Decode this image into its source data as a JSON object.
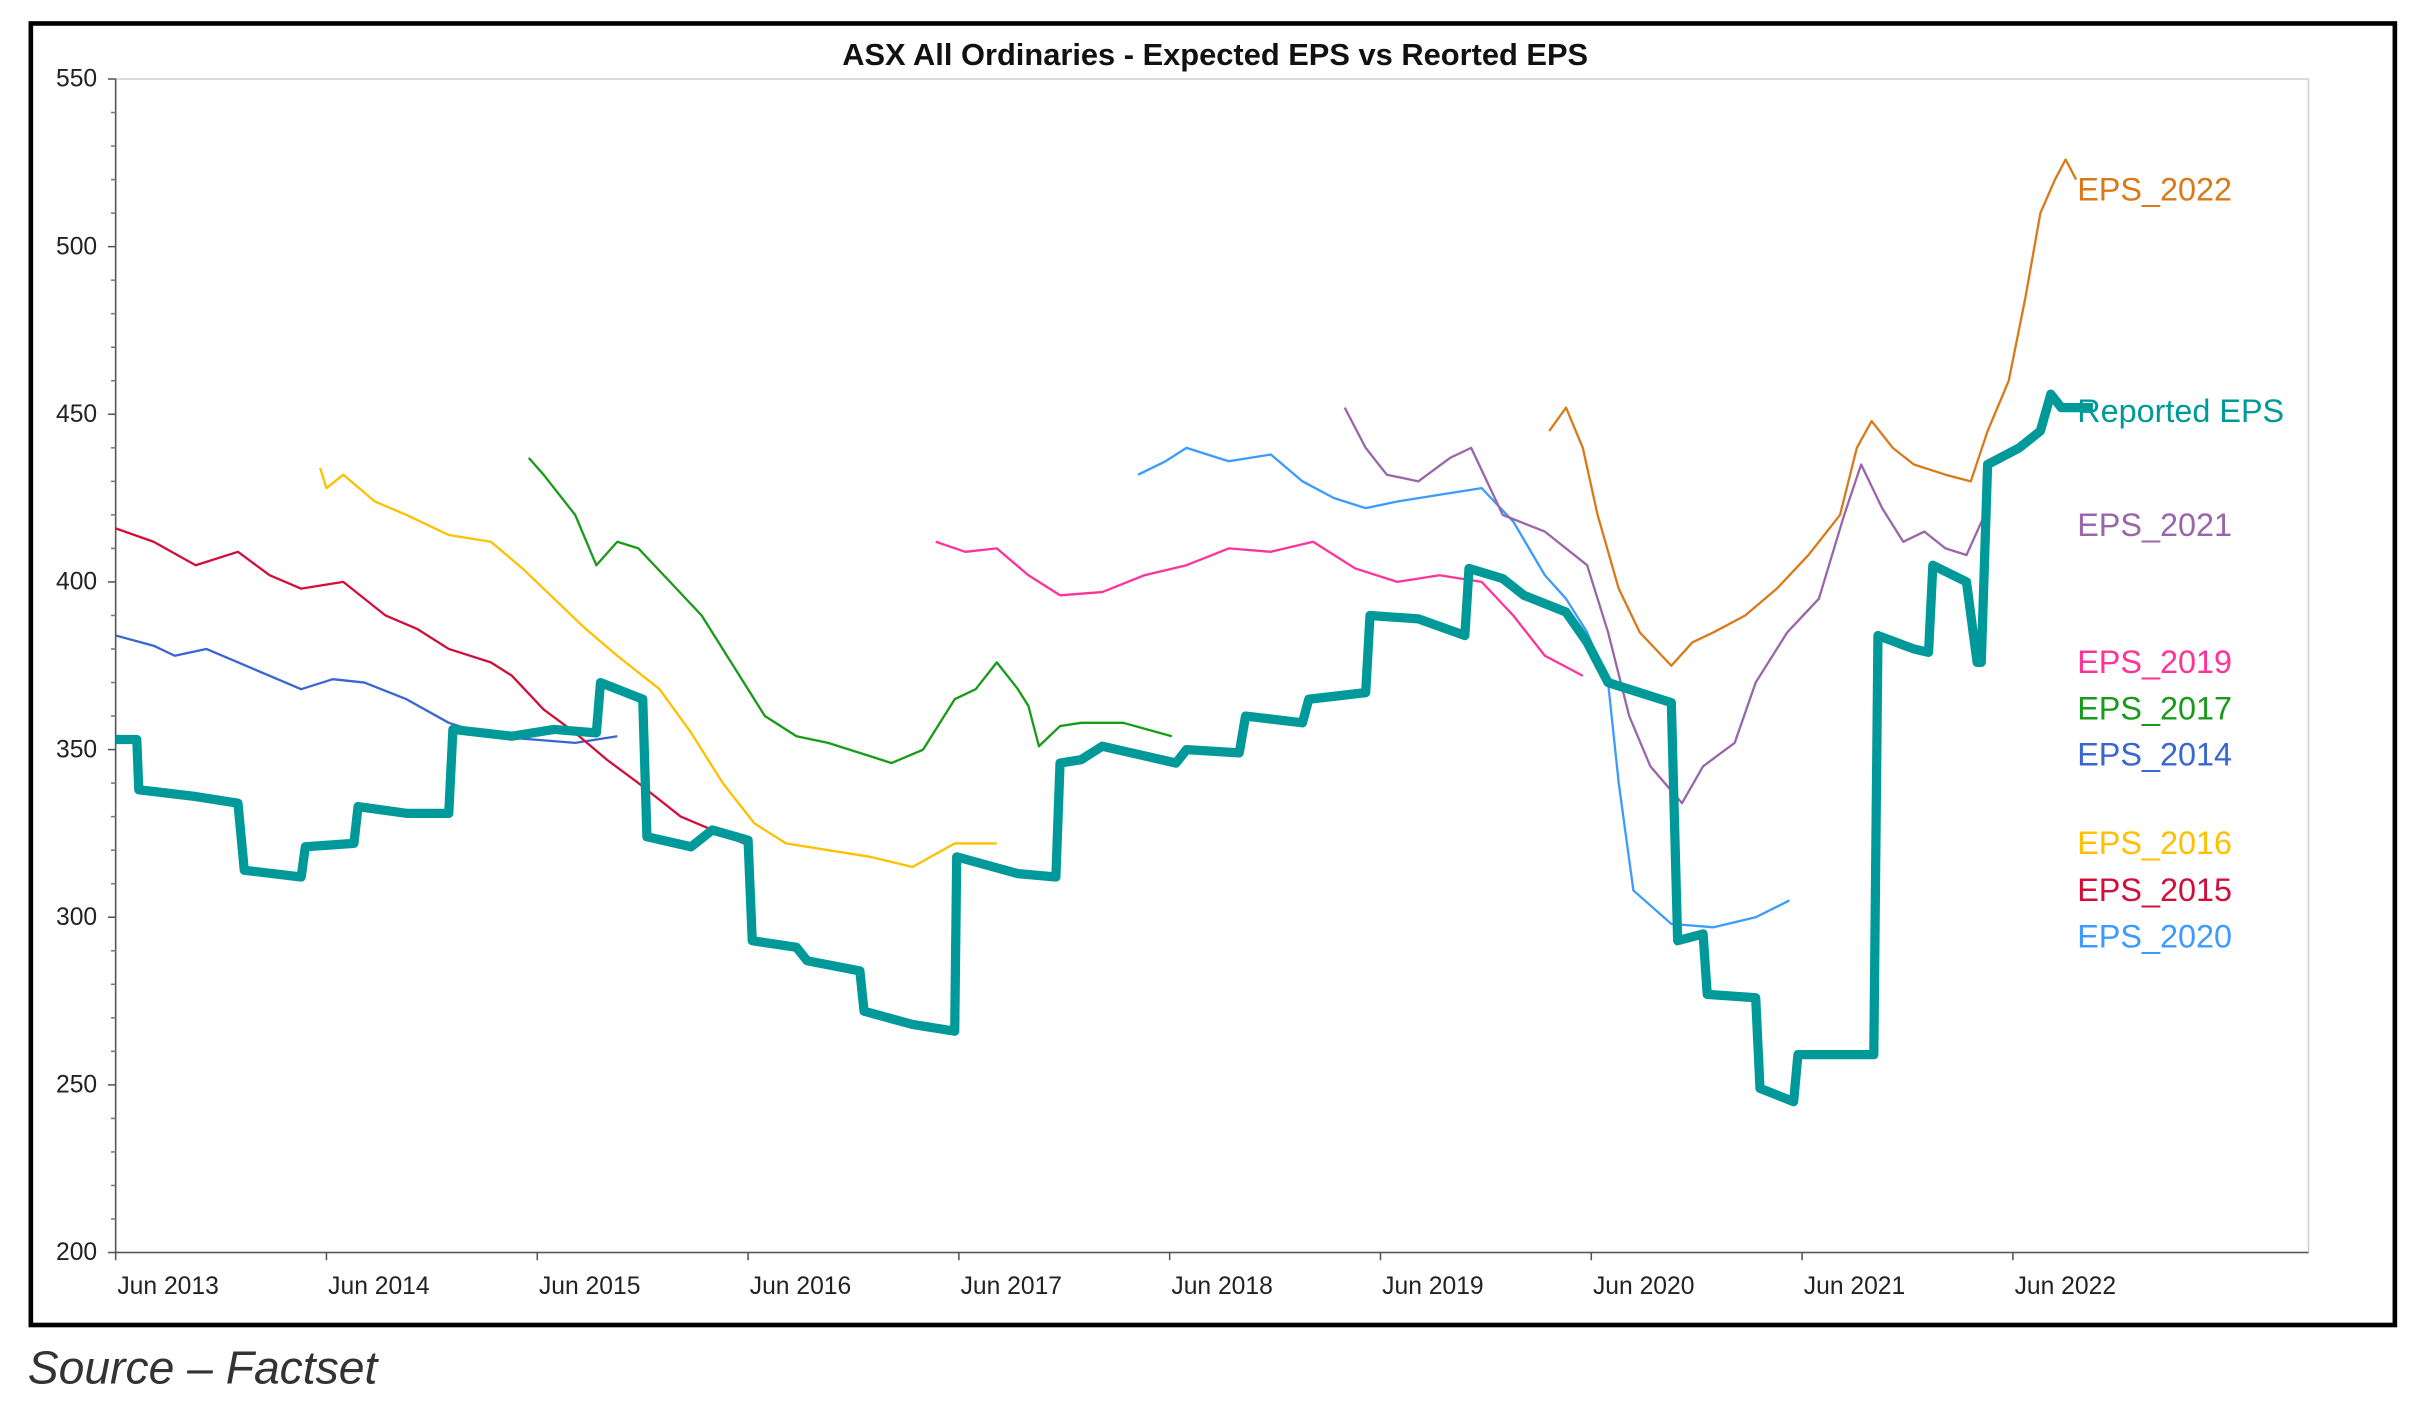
{
  "chart_data": {
    "type": "line",
    "title": "ASX All Ordinaries - Expected EPS vs Reorted EPS",
    "xlabel": "",
    "ylabel": "",
    "ylim": [
      200,
      550
    ],
    "xlim": [
      2013.42,
      2023.8
    ],
    "yticks": [
      200,
      250,
      300,
      350,
      400,
      450,
      500,
      550
    ],
    "xticks": [
      {
        "x": 2013.42,
        "label": "Jun 2013"
      },
      {
        "x": 2014.42,
        "label": "Jun 2014"
      },
      {
        "x": 2015.42,
        "label": "Jun 2015"
      },
      {
        "x": 2016.42,
        "label": "Jun 2016"
      },
      {
        "x": 2017.42,
        "label": "Jun 2017"
      },
      {
        "x": 2018.42,
        "label": "Jun 2018"
      },
      {
        "x": 2019.42,
        "label": "Jun 2019"
      },
      {
        "x": 2020.42,
        "label": "Jun 2020"
      },
      {
        "x": 2021.42,
        "label": "Jun 2021"
      },
      {
        "x": 2022.42,
        "label": "Jun 2022"
      }
    ],
    "grid": false,
    "legend": "right (inline labels)",
    "series": [
      {
        "name": "EPS_2014",
        "color": "#3a66d0",
        "width": 1.5,
        "labelY": 350,
        "points": [
          [
            2013.42,
            384
          ],
          [
            2013.6,
            381
          ],
          [
            2013.7,
            378
          ],
          [
            2013.85,
            380
          ],
          [
            2014.0,
            376
          ],
          [
            2014.15,
            372
          ],
          [
            2014.3,
            368
          ],
          [
            2014.45,
            371
          ],
          [
            2014.6,
            370
          ],
          [
            2014.8,
            365
          ],
          [
            2015.0,
            358
          ],
          [
            2015.2,
            354
          ],
          [
            2015.4,
            353
          ],
          [
            2015.6,
            352
          ],
          [
            2015.8,
            354
          ]
        ]
      },
      {
        "name": "EPS_2015",
        "color": "#d0103a",
        "width": 1.5,
        "labelY": 308,
        "points": [
          [
            2013.42,
            416
          ],
          [
            2013.6,
            412
          ],
          [
            2013.8,
            405
          ],
          [
            2014.0,
            409
          ],
          [
            2014.15,
            402
          ],
          [
            2014.3,
            398
          ],
          [
            2014.5,
            400
          ],
          [
            2014.7,
            390
          ],
          [
            2014.85,
            386
          ],
          [
            2015.0,
            380
          ],
          [
            2015.2,
            376
          ],
          [
            2015.3,
            372
          ],
          [
            2015.45,
            362
          ],
          [
            2015.6,
            355
          ],
          [
            2015.75,
            347
          ],
          [
            2015.9,
            340
          ],
          [
            2016.1,
            330
          ],
          [
            2016.25,
            326
          ],
          [
            2016.4,
            322
          ]
        ]
      },
      {
        "name": "EPS_2016",
        "color": "#ffc000",
        "width": 1.5,
        "labelY": 322,
        "points": [
          [
            2014.39,
            434
          ],
          [
            2014.42,
            428
          ],
          [
            2014.5,
            432
          ],
          [
            2014.65,
            424
          ],
          [
            2014.8,
            420
          ],
          [
            2015.0,
            414
          ],
          [
            2015.2,
            412
          ],
          [
            2015.35,
            404
          ],
          [
            2015.5,
            395
          ],
          [
            2015.65,
            386
          ],
          [
            2015.8,
            378
          ],
          [
            2016.0,
            368
          ],
          [
            2016.15,
            355
          ],
          [
            2016.3,
            340
          ],
          [
            2016.45,
            328
          ],
          [
            2016.6,
            322
          ],
          [
            2016.8,
            320
          ],
          [
            2017.0,
            318
          ],
          [
            2017.2,
            315
          ],
          [
            2017.4,
            322
          ],
          [
            2017.6,
            322
          ]
        ]
      },
      {
        "name": "EPS_2017",
        "color": "#1a9a1a",
        "width": 1.5,
        "labelY": 363,
        "points": [
          [
            2015.38,
            437
          ],
          [
            2015.45,
            432
          ],
          [
            2015.6,
            420
          ],
          [
            2015.7,
            405
          ],
          [
            2015.8,
            412
          ],
          [
            2015.9,
            410
          ],
          [
            2016.05,
            400
          ],
          [
            2016.2,
            390
          ],
          [
            2016.35,
            375
          ],
          [
            2016.5,
            360
          ],
          [
            2016.65,
            354
          ],
          [
            2016.8,
            352
          ],
          [
            2017.0,
            348
          ],
          [
            2017.1,
            346
          ],
          [
            2017.25,
            350
          ],
          [
            2017.4,
            365
          ],
          [
            2017.5,
            368
          ],
          [
            2017.6,
            376
          ],
          [
            2017.7,
            368
          ],
          [
            2017.75,
            363
          ],
          [
            2017.8,
            351
          ],
          [
            2017.9,
            357
          ],
          [
            2018.0,
            358
          ],
          [
            2018.2,
            358
          ],
          [
            2018.43,
            354
          ]
        ]
      },
      {
        "name": "EPS_2019",
        "color": "#ff3399",
        "width": 1.5,
        "labelY": 376,
        "points": [
          [
            2017.31,
            412
          ],
          [
            2017.45,
            409
          ],
          [
            2017.6,
            410
          ],
          [
            2017.75,
            402
          ],
          [
            2017.9,
            396
          ],
          [
            2018.1,
            397
          ],
          [
            2018.3,
            402
          ],
          [
            2018.5,
            405
          ],
          [
            2018.7,
            410
          ],
          [
            2018.9,
            409
          ],
          [
            2019.1,
            412
          ],
          [
            2019.3,
            404
          ],
          [
            2019.5,
            400
          ],
          [
            2019.7,
            402
          ],
          [
            2019.9,
            400
          ],
          [
            2020.05,
            390
          ],
          [
            2020.2,
            378
          ],
          [
            2020.38,
            372
          ]
        ]
      },
      {
        "name": "EPS_2020",
        "color": "#3d9bff",
        "width": 1.5,
        "labelY": 305,
        "points": [
          [
            2018.27,
            432
          ],
          [
            2018.4,
            436
          ],
          [
            2018.5,
            440
          ],
          [
            2018.7,
            436
          ],
          [
            2018.9,
            438
          ],
          [
            2019.05,
            430
          ],
          [
            2019.2,
            425
          ],
          [
            2019.35,
            422
          ],
          [
            2019.5,
            424
          ],
          [
            2019.7,
            426
          ],
          [
            2019.9,
            428
          ],
          [
            2020.05,
            418
          ],
          [
            2020.2,
            402
          ],
          [
            2020.3,
            395
          ],
          [
            2020.4,
            385
          ],
          [
            2020.5,
            370
          ],
          [
            2020.55,
            340
          ],
          [
            2020.62,
            308
          ],
          [
            2020.8,
            298
          ],
          [
            2021.0,
            297
          ],
          [
            2021.2,
            300
          ],
          [
            2021.36,
            305
          ]
        ]
      },
      {
        "name": "EPS_2021",
        "color": "#9966aa",
        "width": 1.5,
        "labelY": 417,
        "points": [
          [
            2019.25,
            452
          ],
          [
            2019.35,
            440
          ],
          [
            2019.45,
            432
          ],
          [
            2019.6,
            430
          ],
          [
            2019.75,
            437
          ],
          [
            2019.85,
            440
          ],
          [
            2020.0,
            420
          ],
          [
            2020.2,
            415
          ],
          [
            2020.4,
            405
          ],
          [
            2020.5,
            385
          ],
          [
            2020.6,
            360
          ],
          [
            2020.7,
            345
          ],
          [
            2020.85,
            334
          ],
          [
            2020.95,
            345
          ],
          [
            2021.1,
            352
          ],
          [
            2021.2,
            370
          ],
          [
            2021.35,
            385
          ],
          [
            2021.5,
            395
          ],
          [
            2021.62,
            420
          ],
          [
            2021.7,
            435
          ],
          [
            2021.8,
            422
          ],
          [
            2021.9,
            412
          ],
          [
            2022.0,
            415
          ],
          [
            2022.1,
            410
          ],
          [
            2022.2,
            408
          ],
          [
            2022.3,
            422
          ]
        ]
      },
      {
        "name": "EPS_2022",
        "color": "#d97a1a",
        "width": 1.5,
        "labelY": 517,
        "points": [
          [
            2020.22,
            445
          ],
          [
            2020.3,
            452
          ],
          [
            2020.38,
            440
          ],
          [
            2020.45,
            420
          ],
          [
            2020.55,
            398
          ],
          [
            2020.65,
            385
          ],
          [
            2020.8,
            375
          ],
          [
            2020.9,
            382
          ],
          [
            2021.0,
            385
          ],
          [
            2021.15,
            390
          ],
          [
            2021.3,
            398
          ],
          [
            2021.45,
            408
          ],
          [
            2021.6,
            420
          ],
          [
            2021.68,
            440
          ],
          [
            2021.75,
            448
          ],
          [
            2021.85,
            440
          ],
          [
            2021.95,
            435
          ],
          [
            2022.1,
            432
          ],
          [
            2022.22,
            430
          ],
          [
            2022.3,
            445
          ],
          [
            2022.4,
            460
          ],
          [
            2022.48,
            485
          ],
          [
            2022.55,
            510
          ],
          [
            2022.62,
            520
          ],
          [
            2022.67,
            526
          ],
          [
            2022.72,
            520
          ]
        ]
      },
      {
        "name": "Reported EPS",
        "color": "#009999",
        "width": 6,
        "labelY": 451,
        "points": [
          [
            2013.42,
            353
          ],
          [
            2013.52,
            353
          ],
          [
            2013.53,
            338
          ],
          [
            2013.8,
            336
          ],
          [
            2014.0,
            334
          ],
          [
            2014.03,
            314
          ],
          [
            2014.3,
            312
          ],
          [
            2014.32,
            321
          ],
          [
            2014.55,
            322
          ],
          [
            2014.57,
            333
          ],
          [
            2014.8,
            331
          ],
          [
            2015.0,
            331
          ],
          [
            2015.02,
            356
          ],
          [
            2015.3,
            354
          ],
          [
            2015.5,
            356
          ],
          [
            2015.7,
            355
          ],
          [
            2015.72,
            370
          ],
          [
            2015.92,
            365
          ],
          [
            2015.94,
            324
          ],
          [
            2016.15,
            321
          ],
          [
            2016.25,
            326
          ],
          [
            2016.42,
            323
          ],
          [
            2016.44,
            293
          ],
          [
            2016.65,
            291
          ],
          [
            2016.7,
            287
          ],
          [
            2016.95,
            284
          ],
          [
            2016.97,
            272
          ],
          [
            2017.2,
            268
          ],
          [
            2017.4,
            266
          ],
          [
            2017.41,
            318
          ],
          [
            2017.7,
            313
          ],
          [
            2017.88,
            312
          ],
          [
            2017.9,
            346
          ],
          [
            2018.0,
            347
          ],
          [
            2018.1,
            351
          ],
          [
            2018.45,
            346
          ],
          [
            2018.5,
            350
          ],
          [
            2018.75,
            349
          ],
          [
            2018.78,
            360
          ],
          [
            2019.05,
            358
          ],
          [
            2019.08,
            365
          ],
          [
            2019.35,
            367
          ],
          [
            2019.37,
            390
          ],
          [
            2019.6,
            389
          ],
          [
            2019.82,
            384
          ],
          [
            2019.84,
            404
          ],
          [
            2020.0,
            401
          ],
          [
            2020.1,
            396
          ],
          [
            2020.3,
            391
          ],
          [
            2020.4,
            382
          ],
          [
            2020.5,
            370
          ],
          [
            2020.8,
            364
          ],
          [
            2020.83,
            293
          ],
          [
            2020.95,
            295
          ],
          [
            2020.97,
            277
          ],
          [
            2021.2,
            276
          ],
          [
            2021.22,
            249
          ],
          [
            2021.38,
            245
          ],
          [
            2021.4,
            259
          ],
          [
            2021.76,
            259
          ],
          [
            2021.78,
            384
          ],
          [
            2021.95,
            380
          ],
          [
            2022.02,
            379
          ],
          [
            2022.04,
            405
          ],
          [
            2022.2,
            400
          ],
          [
            2022.25,
            376
          ],
          [
            2022.27,
            376
          ],
          [
            2022.3,
            435
          ],
          [
            2022.45,
            440
          ],
          [
            2022.55,
            445
          ],
          [
            2022.6,
            456
          ],
          [
            2022.65,
            452
          ],
          [
            2022.8,
            452
          ]
        ]
      }
    ]
  },
  "footer": {
    "source": "Source – Factset"
  }
}
